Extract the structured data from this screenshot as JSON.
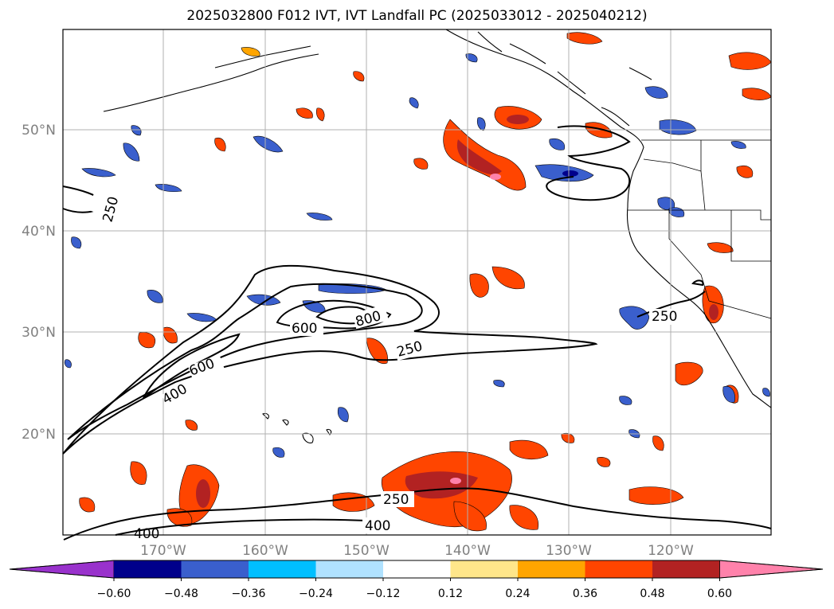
{
  "title": "2025032800 F012 IVT, IVT Landfall PC (2025033012 - 2025040212)",
  "lat_labels": [
    "50°N",
    "40°N",
    "30°N",
    "20°N"
  ],
  "lon_labels": [
    "170°W",
    "160°W",
    "150°W",
    "140°W",
    "130°W",
    "120°W"
  ],
  "contour_labels": [
    "250",
    "600",
    "800",
    "250",
    "600",
    "400",
    "250",
    "250",
    "400",
    "400"
  ],
  "colorbar": {
    "ticks": [
      "−0.60",
      "−0.48",
      "−0.36",
      "−0.24",
      "−0.12",
      "0.12",
      "0.24",
      "0.36",
      "0.48",
      "0.60"
    ],
    "colors": [
      "#9932cc",
      "#00008b",
      "#3a5fcd",
      "#00bfff",
      "#b0e2ff",
      "#ffffff",
      "#ffe68a",
      "#ffa500",
      "#ff4500",
      "#b22222",
      "#ff82ab"
    ]
  },
  "colors": {
    "grid": "#b0b0b0",
    "tick_label": "#808080",
    "contour": "#000000"
  }
}
